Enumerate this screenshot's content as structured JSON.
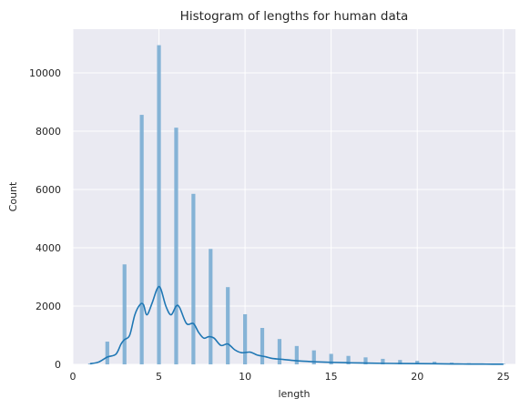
{
  "chart_data": {
    "type": "histogram",
    "title": "Histogram of lengths for human data",
    "xlabel": "length",
    "ylabel": "Count",
    "xlim": [
      0,
      25.7
    ],
    "ylim": [
      0,
      11500
    ],
    "xticks": [
      0,
      5,
      10,
      15,
      20,
      25
    ],
    "yticks": [
      0,
      2000,
      4000,
      6000,
      8000,
      10000
    ],
    "grid": true,
    "bar_color": "#7fb0d4",
    "kde_color": "#1f77b4",
    "bins": [
      {
        "x": 1,
        "count": 30
      },
      {
        "x": 2,
        "count": 780
      },
      {
        "x": 3,
        "count": 3430
      },
      {
        "x": 4,
        "count": 8560
      },
      {
        "x": 5,
        "count": 10950
      },
      {
        "x": 6,
        "count": 8120
      },
      {
        "x": 7,
        "count": 5850
      },
      {
        "x": 8,
        "count": 3960
      },
      {
        "x": 9,
        "count": 2650
      },
      {
        "x": 10,
        "count": 1720
      },
      {
        "x": 11,
        "count": 1250
      },
      {
        "x": 12,
        "count": 870
      },
      {
        "x": 13,
        "count": 630
      },
      {
        "x": 14,
        "count": 480
      },
      {
        "x": 15,
        "count": 360
      },
      {
        "x": 16,
        "count": 290
      },
      {
        "x": 17,
        "count": 240
      },
      {
        "x": 18,
        "count": 190
      },
      {
        "x": 19,
        "count": 150
      },
      {
        "x": 20,
        "count": 120
      },
      {
        "x": 21,
        "count": 90
      },
      {
        "x": 22,
        "count": 60
      },
      {
        "x": 23,
        "count": 40
      },
      {
        "x": 24,
        "count": 30
      },
      {
        "x": 25,
        "count": 20
      }
    ],
    "kde": [
      [
        1.0,
        20
      ],
      [
        1.5,
        80
      ],
      [
        2.0,
        250
      ],
      [
        2.5,
        350
      ],
      [
        2.8,
        700
      ],
      [
        3.0,
        850
      ],
      [
        3.3,
        1000
      ],
      [
        3.6,
        1700
      ],
      [
        3.9,
        2050
      ],
      [
        4.1,
        2050
      ],
      [
        4.3,
        1700
      ],
      [
        4.6,
        2100
      ],
      [
        4.9,
        2600
      ],
      [
        5.1,
        2600
      ],
      [
        5.4,
        2000
      ],
      [
        5.7,
        1700
      ],
      [
        6.0,
        2000
      ],
      [
        6.2,
        1950
      ],
      [
        6.6,
        1400
      ],
      [
        7.0,
        1400
      ],
      [
        7.3,
        1100
      ],
      [
        7.6,
        900
      ],
      [
        7.9,
        950
      ],
      [
        8.2,
        900
      ],
      [
        8.6,
        650
      ],
      [
        9.0,
        700
      ],
      [
        9.4,
        500
      ],
      [
        9.8,
        400
      ],
      [
        10.3,
        420
      ],
      [
        10.7,
        320
      ],
      [
        11.2,
        260
      ],
      [
        11.6,
        200
      ],
      [
        12.2,
        170
      ],
      [
        12.7,
        140
      ],
      [
        13.3,
        110
      ],
      [
        14.0,
        90
      ],
      [
        15.0,
        70
      ],
      [
        16.0,
        55
      ],
      [
        17.0,
        45
      ],
      [
        18.0,
        35
      ],
      [
        19.0,
        30
      ],
      [
        20.0,
        25
      ],
      [
        21.0,
        20
      ],
      [
        22.0,
        15
      ],
      [
        23.0,
        10
      ],
      [
        24.0,
        8
      ],
      [
        25.0,
        5
      ]
    ]
  }
}
